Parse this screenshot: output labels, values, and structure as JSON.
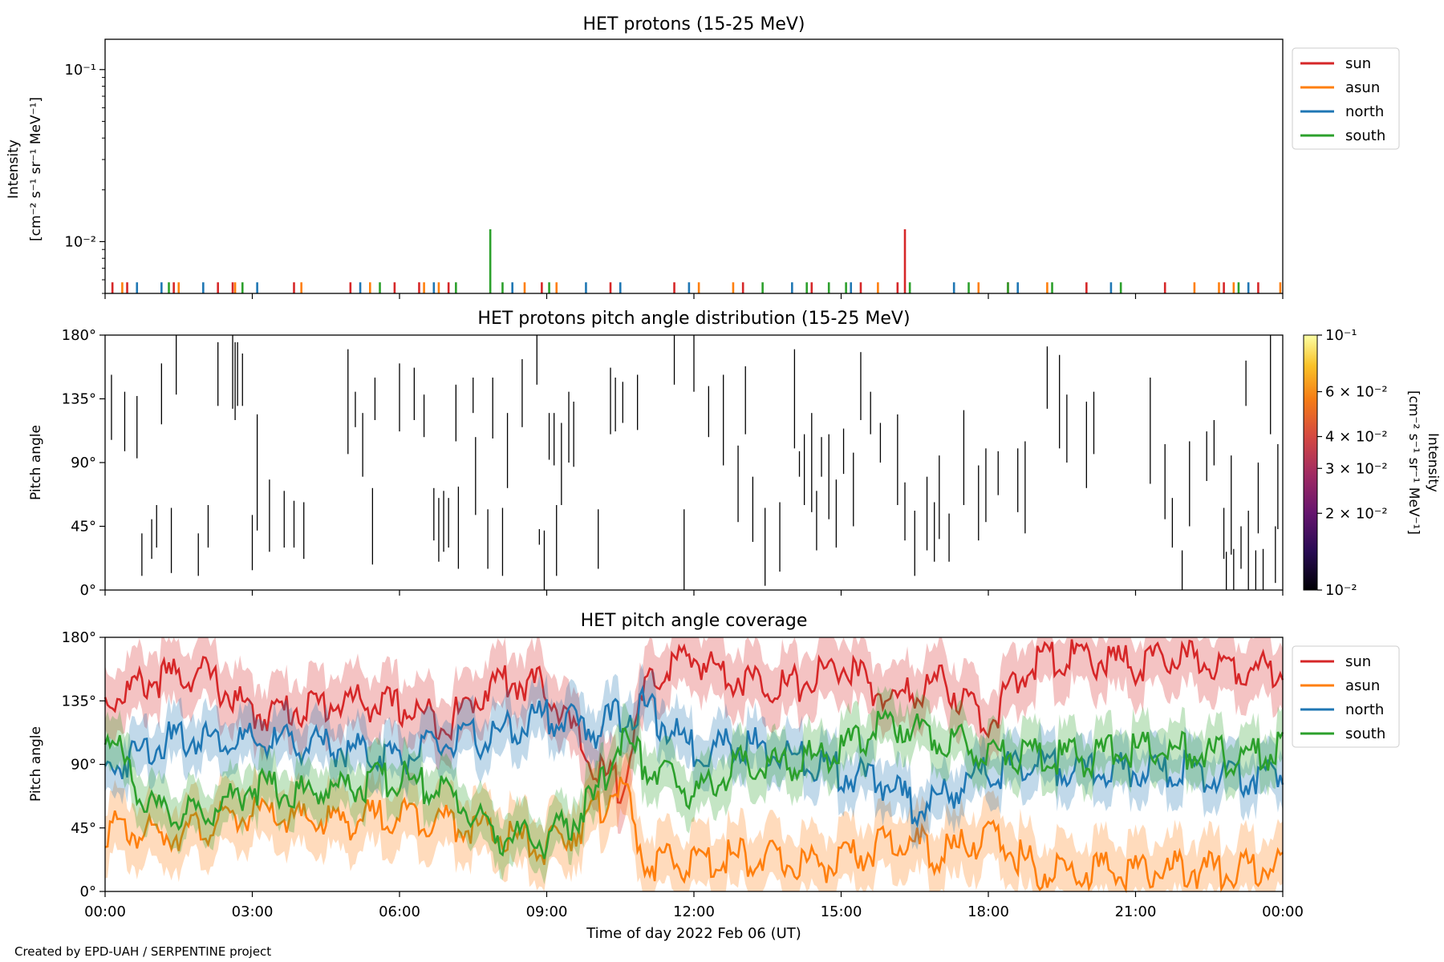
{
  "footer": "Created by EPD-UAH / SERPENTINE project",
  "colors": {
    "sun": "#d62728",
    "asun": "#ff7f0e",
    "north": "#1f77b4",
    "south": "#2ca02c"
  },
  "chart_data": [
    {
      "type": "line",
      "title": "HET protons (15-25 MeV)",
      "ylabel": "Intensity",
      "ylabel2": "[cm⁻² s⁻¹ sr⁻¹ MeV⁻¹]",
      "yscale": "log",
      "ylim": [
        0.005,
        0.15
      ],
      "y_ticks": [
        "10⁻¹",
        "10⁻²"
      ],
      "legend": [
        "sun",
        "asun",
        "north",
        "south"
      ],
      "legend_position": "outside-right-top",
      "x_unit": "hours",
      "spikes": [
        {
          "series": "sun",
          "x": 16.3,
          "y": 0.0118
        },
        {
          "series": "south",
          "x": 7.85,
          "y": 0.0118
        }
      ],
      "sparse_points": [
        {
          "series": "sun",
          "x": [
            0.15,
            0.45,
            1.4,
            2.3,
            2.6,
            3.85,
            5.0,
            5.9,
            6.4,
            7.0,
            8.9,
            10.3,
            11.6,
            13.0,
            14.4,
            15.4,
            16.15,
            18.4,
            20.0,
            21.6,
            22.8,
            23.5
          ]
        },
        {
          "series": "asun",
          "x": [
            0.35,
            1.5,
            2.65,
            4.0,
            5.4,
            6.5,
            6.8,
            8.55,
            9.2,
            12.1,
            12.8,
            15.75,
            17.8,
            19.2,
            22.2,
            22.7,
            23.0,
            23.95
          ]
        },
        {
          "series": "north",
          "x": [
            0.65,
            1.15,
            2.0,
            3.1,
            5.2,
            6.7,
            8.3,
            9.8,
            10.5,
            11.9,
            14.0,
            15.2,
            17.3,
            18.6,
            20.5,
            23.3
          ]
        },
        {
          "series": "south",
          "x": [
            1.3,
            2.8,
            5.6,
            7.15,
            8.1,
            9.05,
            13.4,
            14.3,
            14.75,
            15.1,
            16.4,
            17.6,
            18.4,
            19.3,
            20.7,
            23.1
          ]
        }
      ]
    },
    {
      "type": "heatmap",
      "title": "HET protons pitch angle distribution (15-25 MeV)",
      "ylabel": "Pitch angle",
      "ylim": [
        0,
        180
      ],
      "y_ticks": [
        "0°",
        "45°",
        "90°",
        "135°",
        "180°"
      ],
      "colorbar": {
        "label": "Intensity",
        "label2": "[cm⁻² s⁻¹ sr⁻¹ MeV⁻¹]",
        "scale": "log",
        "range": [
          0.01,
          0.1
        ],
        "ticks": [
          {
            "value": 0.1,
            "label": "10⁻¹"
          },
          {
            "value": 0.06,
            "label": "6 × 10⁻²"
          },
          {
            "value": 0.04,
            "label": "4 × 10⁻²"
          },
          {
            "value": 0.03,
            "label": "3 × 10⁻²"
          },
          {
            "value": 0.02,
            "label": "2 × 10⁻²"
          },
          {
            "value": 0.01,
            "label": "10⁻²"
          }
        ]
      },
      "x_unit": "hours",
      "segments": [
        [
          0.13,
          106,
          152
        ],
        [
          0.4,
          98,
          140
        ],
        [
          0.65,
          93,
          137
        ],
        [
          1.15,
          117,
          160
        ],
        [
          1.35,
          12,
          58
        ],
        [
          1.45,
          138,
          180
        ],
        [
          2.3,
          130,
          175
        ],
        [
          2.6,
          128,
          180
        ],
        [
          2.65,
          120,
          175
        ],
        [
          2.8,
          130,
          167
        ],
        [
          3.1,
          42,
          124
        ],
        [
          3.0,
          14,
          53
        ],
        [
          3.35,
          27,
          78
        ],
        [
          3.65,
          30,
          70
        ],
        [
          3.85,
          30,
          63
        ],
        [
          4.05,
          22,
          62
        ],
        [
          4.95,
          96,
          170
        ],
        [
          5.1,
          115,
          140
        ],
        [
          5.25,
          80,
          125
        ],
        [
          5.5,
          120,
          150
        ],
        [
          5.45,
          18,
          72
        ],
        [
          6.0,
          112,
          160
        ],
        [
          6.3,
          120,
          157
        ],
        [
          6.5,
          108,
          138
        ],
        [
          6.7,
          35,
          72
        ],
        [
          6.8,
          20,
          65
        ],
        [
          6.9,
          27,
          70
        ],
        [
          7.0,
          30,
          65
        ],
        [
          7.2,
          15,
          73
        ],
        [
          7.15,
          105,
          145
        ],
        [
          7.5,
          125,
          150
        ],
        [
          7.55,
          53,
          108
        ],
        [
          7.8,
          15,
          57
        ],
        [
          7.9,
          107,
          150
        ],
        [
          8.2,
          72,
          125
        ],
        [
          8.1,
          10,
          58
        ],
        [
          8.5,
          115,
          163
        ],
        [
          8.8,
          145,
          180
        ],
        [
          8.85,
          32,
          43
        ],
        [
          8.95,
          0,
          42
        ],
        [
          9.05,
          92,
          125
        ],
        [
          9.15,
          88,
          125
        ],
        [
          9.2,
          10,
          60
        ],
        [
          9.3,
          60,
          118
        ],
        [
          9.45,
          90,
          140
        ],
        [
          9.55,
          87,
          133
        ],
        [
          10.05,
          15,
          57
        ],
        [
          10.3,
          110,
          157
        ],
        [
          10.4,
          112,
          150
        ],
        [
          10.55,
          118,
          147
        ],
        [
          10.85,
          113,
          152
        ],
        [
          11.6,
          145,
          180
        ],
        [
          11.8,
          0,
          57
        ],
        [
          12.0,
          140,
          180
        ],
        [
          12.3,
          108,
          144
        ],
        [
          12.6,
          88,
          152
        ],
        [
          12.9,
          48,
          102
        ],
        [
          13.05,
          110,
          158
        ],
        [
          13.2,
          34,
          80
        ],
        [
          13.45,
          3,
          58
        ],
        [
          13.75,
          13,
          62
        ],
        [
          14.05,
          100,
          170
        ],
        [
          14.15,
          80,
          98
        ],
        [
          14.25,
          60,
          110
        ],
        [
          14.4,
          55,
          125
        ],
        [
          14.5,
          28,
          70
        ],
        [
          14.6,
          80,
          108
        ],
        [
          14.75,
          50,
          110
        ],
        [
          14.9,
          30,
          78
        ],
        [
          15.05,
          82,
          114
        ],
        [
          15.25,
          45,
          97
        ],
        [
          15.4,
          120,
          168
        ],
        [
          15.6,
          110,
          140
        ],
        [
          15.8,
          90,
          118
        ],
        [
          16.15,
          60,
          124
        ],
        [
          16.3,
          35,
          76
        ],
        [
          16.5,
          10,
          56
        ],
        [
          16.75,
          28,
          80
        ],
        [
          16.9,
          20,
          62
        ],
        [
          17.0,
          36,
          95
        ],
        [
          17.2,
          20,
          54
        ],
        [
          17.5,
          60,
          127
        ],
        [
          17.8,
          35,
          88
        ],
        [
          17.95,
          48,
          100
        ],
        [
          18.2,
          67,
          98
        ],
        [
          18.6,
          55,
          100
        ],
        [
          18.75,
          40,
          105
        ],
        [
          19.2,
          128,
          172
        ],
        [
          19.45,
          100,
          166
        ],
        [
          19.6,
          90,
          138
        ],
        [
          20.0,
          72,
          133
        ],
        [
          20.15,
          96,
          140
        ],
        [
          21.3,
          75,
          150
        ],
        [
          21.6,
          50,
          103
        ],
        [
          21.75,
          30,
          65
        ],
        [
          22.1,
          45,
          105
        ],
        [
          22.45,
          77,
          112
        ],
        [
          22.6,
          88,
          120
        ],
        [
          22.8,
          22,
          58
        ],
        [
          22.95,
          25,
          95
        ],
        [
          23.15,
          15,
          45
        ],
        [
          23.5,
          40,
          90
        ],
        [
          23.9,
          43,
          103
        ],
        [
          0.95,
          22,
          50
        ],
        [
          1.05,
          30,
          60
        ],
        [
          2.1,
          30,
          60
        ],
        [
          0.75,
          10,
          40
        ],
        [
          2.7,
          130,
          175
        ],
        [
          1.9,
          10,
          40
        ],
        [
          23.3,
          0,
          56
        ],
        [
          23.45,
          0,
          28
        ],
        [
          23.6,
          0,
          29
        ],
        [
          23.0,
          0,
          29
        ],
        [
          22.85,
          0,
          27
        ],
        [
          21.95,
          0,
          28
        ],
        [
          23.75,
          110,
          180
        ],
        [
          23.25,
          130,
          162
        ],
        [
          23.85,
          5,
          45
        ]
      ]
    },
    {
      "type": "area",
      "title": "HET pitch angle coverage",
      "ylabel": "Pitch angle",
      "xlabel": "Time of day 2022 Feb 06 (UT)",
      "ylim": [
        0,
        180
      ],
      "y_ticks": [
        "0°",
        "45°",
        "90°",
        "135°",
        "180°"
      ],
      "x_ticks": [
        "00:00",
        "03:00",
        "06:00",
        "09:00",
        "12:00",
        "15:00",
        "18:00",
        "21:00",
        "00:00"
      ],
      "legend": [
        "sun",
        "asun",
        "north",
        "south"
      ],
      "legend_position": "outside-right-top",
      "x_unit": "hours",
      "x": [
        0,
        1,
        2,
        3,
        4,
        5,
        6,
        7,
        8,
        9,
        10,
        10.5,
        11,
        11.5,
        12,
        13,
        14,
        15,
        16,
        16.5,
        17,
        18,
        19,
        20,
        21,
        22,
        23,
        24
      ],
      "series": [
        {
          "name": "sun",
          "values": [
            135,
            150,
            155,
            125,
            130,
            135,
            130,
            120,
            150,
            145,
            85,
            75,
            140,
            160,
            165,
            150,
            145,
            160,
            135,
            140,
            150,
            120,
            165,
            165,
            160,
            165,
            160,
            155
          ],
          "band": 22
        },
        {
          "name": "asun",
          "values": [
            45,
            40,
            45,
            55,
            50,
            50,
            55,
            50,
            40,
            30,
            55,
            80,
            20,
            20,
            20,
            25,
            20,
            20,
            35,
            35,
            25,
            40,
            15,
            15,
            15,
            15,
            15,
            20
          ],
          "band": 22
        },
        {
          "name": "north",
          "values": [
            85,
            105,
            110,
            105,
            105,
            100,
            95,
            105,
            110,
            125,
            115,
            125,
            130,
            115,
            100,
            105,
            95,
            85,
            75,
            60,
            65,
            85,
            90,
            85,
            85,
            85,
            80,
            85
          ],
          "band": 18
        },
        {
          "name": "south",
          "values": [
            115,
            55,
            55,
            75,
            70,
            75,
            80,
            70,
            40,
            35,
            65,
            110,
            90,
            80,
            70,
            90,
            90,
            100,
            120,
            115,
            110,
            100,
            95,
            95,
            100,
            100,
            95,
            100
          ],
          "band": 18
        }
      ]
    }
  ]
}
